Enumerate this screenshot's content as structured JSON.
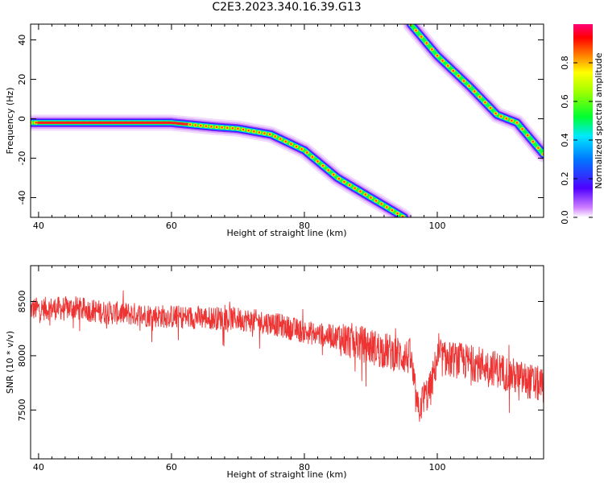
{
  "title": "C2E3.2023.340.16.39.G13",
  "chart_data": [
    {
      "type": "heatmap",
      "title": "",
      "xlabel": "Height of straight line (km)",
      "ylabel": "Frequency (Hz)",
      "xlim": [
        38.8,
        116
      ],
      "ylim": [
        -50,
        48
      ],
      "xticks": [
        40,
        60,
        80,
        100
      ],
      "yticks": [
        -40,
        -20,
        0,
        20,
        40
      ],
      "colorbar": {
        "label": "Normalized spectral amplitude",
        "range": [
          0,
          1
        ],
        "ticks": [
          "0.0",
          "0.2",
          "0.4",
          "0.6",
          "0.8"
        ],
        "colormap": "rainbow (white → violet → blue → cyan → green → yellow → red → magenta)"
      },
      "trace": {
        "x": [
          38.8,
          45,
          50,
          55,
          60,
          63,
          66,
          70,
          75,
          80,
          85,
          90,
          95,
          96,
          100,
          105,
          109,
          112,
          116
        ],
        "y": [
          -2,
          -2,
          -2,
          -2,
          -2,
          -3,
          -4,
          -5,
          -8,
          -16,
          -30,
          -40,
          -50,
          48,
          32,
          16,
          2,
          -2,
          -18
        ]
      }
    },
    {
      "type": "line",
      "title": "",
      "xlabel": "Height of straight line (km)",
      "ylabel": "SNR (10 * v/v)",
      "xlim": [
        38.8,
        116
      ],
      "ylim": [
        7050,
        8830
      ],
      "xticks": [
        40,
        60,
        80,
        100
      ],
      "yticks": [
        7500,
        8000,
        8500
      ],
      "series": [
        {
          "color": "#ee3333",
          "x": [
            38.8,
            45,
            50,
            55,
            60,
            65,
            70,
            75,
            80,
            85,
            88,
            92,
            96,
            97,
            99,
            100,
            104,
            108,
            112,
            116
          ],
          "y": [
            8430,
            8440,
            8400,
            8380,
            8360,
            8350,
            8340,
            8300,
            8220,
            8170,
            8120,
            8050,
            7980,
            7500,
            7700,
            7980,
            7950,
            7900,
            7800,
            7720
          ]
        }
      ]
    }
  ]
}
